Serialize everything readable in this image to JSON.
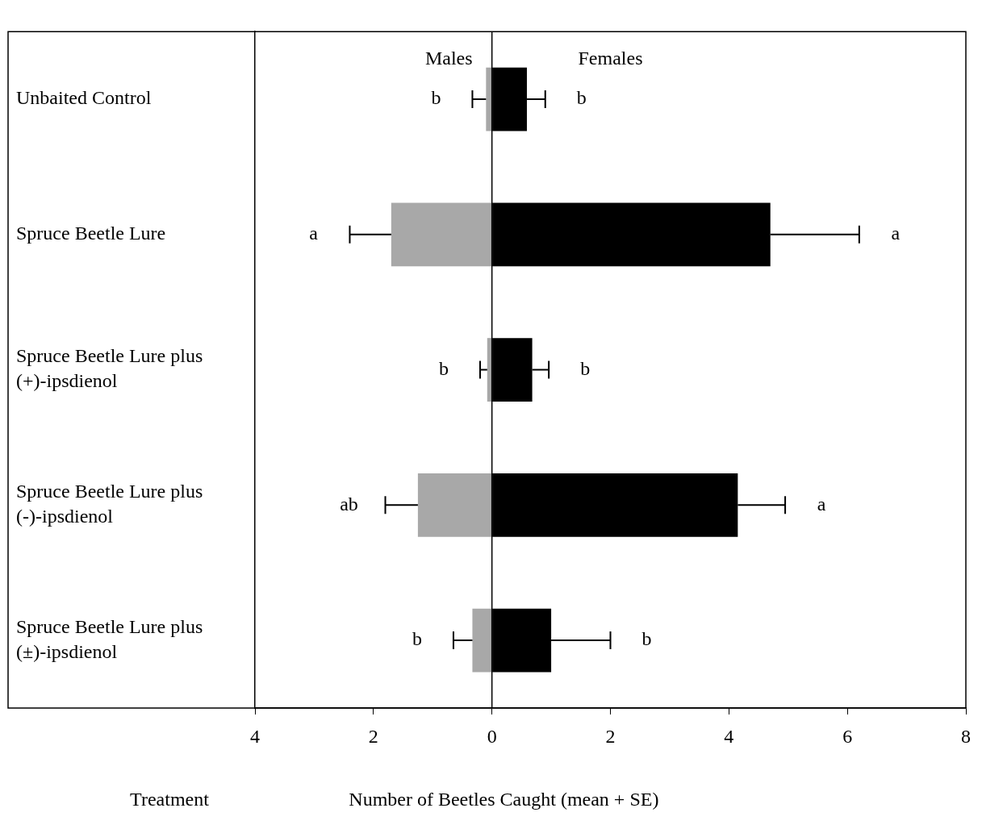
{
  "chart_data": {
    "type": "bar",
    "orientation": "horizontal",
    "stacked": true,
    "categories": [
      "Unbaited Control",
      "Spruce Beetle Lure",
      "Spruce Beetle Lure plus (+)-ipsdienol",
      "Spruce Beetle Lure plus (-)-ipsdienol",
      "Spruce Beetle Lure plus (±)-ipsdienol"
    ],
    "series": [
      {
        "name": "Males",
        "color": "#a8a8a8",
        "values": [
          -0.1,
          -1.7,
          -0.08,
          -1.25,
          -0.33
        ],
        "errors": [
          [
            -0.33,
            -0.1
          ],
          [
            -2.4,
            -1.7
          ],
          [
            -0.2,
            -0.08
          ],
          [
            -1.8,
            -1.25
          ],
          [
            -0.65,
            -0.33
          ]
        ]
      },
      {
        "name": "Females",
        "color": "#000000",
        "values": [
          0.59,
          4.7,
          0.68,
          4.15,
          1.0
        ],
        "errors": [
          [
            0.59,
            0.9
          ],
          [
            4.7,
            6.2
          ],
          [
            0.68,
            0.96
          ],
          [
            4.15,
            4.95
          ],
          [
            1.0,
            2.0
          ]
        ]
      }
    ],
    "xlim": [
      -4,
      8
    ],
    "xticks": [
      {
        "value": -4,
        "label": "4"
      },
      {
        "value": -2,
        "label": "2"
      },
      0,
      2,
      4,
      6,
      8
    ],
    "xlabel": "Number of Beetles Caught (mean + SE)",
    "ylabel": "Treatment",
    "ref_lines": [
      {
        "axis": "x",
        "value": 0,
        "color": "#000000"
      }
    ],
    "annotations": [
      "b",
      "b",
      "a",
      "a",
      "b",
      "b",
      "ab",
      "a",
      "b",
      "b"
    ]
  }
}
